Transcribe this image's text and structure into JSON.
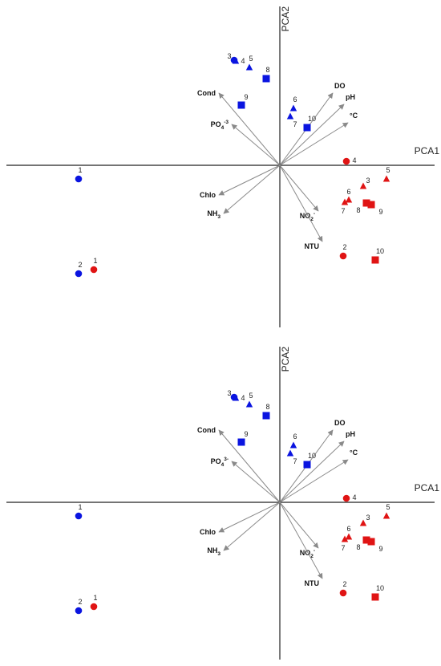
{
  "chart_data": [
    {
      "type": "scatter",
      "title": "",
      "xlabel": "PCA1",
      "ylabel": "PCA2",
      "xlim": [
        -2.62,
        1.52
      ],
      "ylim": [
        -1.51,
        1.53
      ],
      "grid": false,
      "colors": {
        "blue": "#0a14e0",
        "red": "#e01414",
        "loading": "#8a8a8a"
      },
      "loadings": [
        {
          "name": "DO",
          "x": 0.66,
          "y": 0.9,
          "sub": "",
          "sup": ""
        },
        {
          "name": "pH",
          "x": 0.8,
          "y": 0.76,
          "sub": "",
          "sup": ""
        },
        {
          "name": "°C",
          "x": 0.85,
          "y": 0.53,
          "sub": "",
          "sup": ""
        },
        {
          "name": "Cond",
          "x": -0.76,
          "y": 0.9,
          "sub": "",
          "sup": ""
        },
        {
          "name": "PO",
          "x": -0.6,
          "y": 0.51,
          "sub": "4",
          "sup": "-3"
        },
        {
          "name": "Chlo",
          "x": -0.76,
          "y": -0.37,
          "sub": "",
          "sup": ""
        },
        {
          "name": "NH",
          "x": -0.7,
          "y": -0.6,
          "sub": "3",
          "sup": ""
        },
        {
          "name": "NO",
          "x": 0.48,
          "y": -0.57,
          "sub": "2",
          "sup": "-"
        },
        {
          "name": "NTU",
          "x": 0.53,
          "y": -0.95,
          "sub": "",
          "sup": ""
        }
      ],
      "points": [
        {
          "label": "3",
          "x": -0.57,
          "y": 1.31,
          "shape": "circle",
          "color": "blue"
        },
        {
          "label": "4",
          "x": -0.55,
          "y": 1.3,
          "shape": "triangle",
          "color": "blue"
        },
        {
          "label": "5",
          "x": -0.38,
          "y": 1.22,
          "shape": "triangle",
          "color": "blue"
        },
        {
          "label": "8",
          "x": -0.17,
          "y": 1.08,
          "shape": "square",
          "color": "blue"
        },
        {
          "label": "9",
          "x": -0.48,
          "y": 0.75,
          "shape": "square",
          "color": "blue"
        },
        {
          "label": "6",
          "x": 0.17,
          "y": 0.71,
          "shape": "triangle",
          "color": "blue"
        },
        {
          "label": "7",
          "x": 0.13,
          "y": 0.61,
          "shape": "triangle",
          "color": "blue"
        },
        {
          "label": "10",
          "x": 0.34,
          "y": 0.47,
          "shape": "square",
          "color": "blue"
        },
        {
          "label": "1",
          "x": -2.51,
          "y": -0.17,
          "shape": "circle",
          "color": "blue"
        },
        {
          "label": "2",
          "x": -2.51,
          "y": -1.35,
          "shape": "circle",
          "color": "blue"
        },
        {
          "label": "1",
          "x": -2.32,
          "y": -1.3,
          "shape": "circle",
          "color": "red"
        },
        {
          "label": "4",
          "x": 0.83,
          "y": 0.05,
          "shape": "circle",
          "color": "red"
        },
        {
          "label": "5",
          "x": 1.33,
          "y": -0.17,
          "shape": "triangle",
          "color": "red"
        },
        {
          "label": "3",
          "x": 1.04,
          "y": -0.26,
          "shape": "triangle",
          "color": "red"
        },
        {
          "label": "6",
          "x": 0.86,
          "y": -0.43,
          "shape": "triangle",
          "color": "red"
        },
        {
          "label": "7",
          "x": 0.81,
          "y": -0.46,
          "shape": "triangle",
          "color": "red"
        },
        {
          "label": "8",
          "x": 1.08,
          "y": -0.47,
          "shape": "square",
          "color": "red"
        },
        {
          "label": "9",
          "x": 1.14,
          "y": -0.49,
          "shape": "square",
          "color": "red"
        },
        {
          "label": "2",
          "x": 0.79,
          "y": -1.13,
          "shape": "circle",
          "color": "red"
        },
        {
          "label": "10",
          "x": 1.19,
          "y": -1.18,
          "shape": "square",
          "color": "red"
        }
      ]
    },
    {
      "type": "scatter",
      "title": "",
      "xlabel": "PCA1",
      "ylabel": "PCA2",
      "xlim": [
        -2.62,
        1.52
      ],
      "ylim": [
        -1.51,
        1.53
      ],
      "grid": false,
      "colors": {
        "blue": "#0a14e0",
        "red": "#e01414",
        "loading": "#8a8a8a"
      },
      "loadings": [
        {
          "name": "DO",
          "x": 0.66,
          "y": 0.9,
          "sub": "",
          "sup": ""
        },
        {
          "name": "pH",
          "x": 0.8,
          "y": 0.76,
          "sub": "",
          "sup": ""
        },
        {
          "name": "°C",
          "x": 0.85,
          "y": 0.53,
          "sub": "",
          "sup": ""
        },
        {
          "name": "Cond",
          "x": -0.76,
          "y": 0.9,
          "sub": "",
          "sup": ""
        },
        {
          "name": "PO",
          "x": -0.6,
          "y": 0.51,
          "sub": "4",
          "sup": "3-"
        },
        {
          "name": "Chlo",
          "x": -0.76,
          "y": -0.37,
          "sub": "",
          "sup": ""
        },
        {
          "name": "NH",
          "x": -0.7,
          "y": -0.6,
          "sub": "3",
          "sup": ""
        },
        {
          "name": "NO",
          "x": 0.48,
          "y": -0.57,
          "sub": "2",
          "sup": "-"
        },
        {
          "name": "NTU",
          "x": 0.53,
          "y": -0.95,
          "sub": "",
          "sup": ""
        }
      ],
      "points": [
        {
          "label": "3",
          "x": -0.57,
          "y": 1.31,
          "shape": "circle",
          "color": "blue"
        },
        {
          "label": "4",
          "x": -0.55,
          "y": 1.3,
          "shape": "triangle",
          "color": "blue"
        },
        {
          "label": "5",
          "x": -0.38,
          "y": 1.22,
          "shape": "triangle",
          "color": "blue"
        },
        {
          "label": "8",
          "x": -0.17,
          "y": 1.08,
          "shape": "square",
          "color": "blue"
        },
        {
          "label": "9",
          "x": -0.48,
          "y": 0.75,
          "shape": "square",
          "color": "blue"
        },
        {
          "label": "6",
          "x": 0.17,
          "y": 0.71,
          "shape": "triangle",
          "color": "blue"
        },
        {
          "label": "7",
          "x": 0.13,
          "y": 0.61,
          "shape": "triangle",
          "color": "blue"
        },
        {
          "label": "10",
          "x": 0.34,
          "y": 0.47,
          "shape": "square",
          "color": "blue"
        },
        {
          "label": "1",
          "x": -2.51,
          "y": -0.17,
          "shape": "circle",
          "color": "blue"
        },
        {
          "label": "2",
          "x": -2.51,
          "y": -1.35,
          "shape": "circle",
          "color": "blue"
        },
        {
          "label": "1",
          "x": -2.32,
          "y": -1.3,
          "shape": "circle",
          "color": "red"
        },
        {
          "label": "4",
          "x": 0.83,
          "y": 0.05,
          "shape": "circle",
          "color": "red"
        },
        {
          "label": "5",
          "x": 1.33,
          "y": -0.17,
          "shape": "triangle",
          "color": "red"
        },
        {
          "label": "3",
          "x": 1.04,
          "y": -0.26,
          "shape": "triangle",
          "color": "red"
        },
        {
          "label": "6",
          "x": 0.86,
          "y": -0.43,
          "shape": "triangle",
          "color": "red"
        },
        {
          "label": "7",
          "x": 0.81,
          "y": -0.46,
          "shape": "triangle",
          "color": "red"
        },
        {
          "label": "8",
          "x": 1.08,
          "y": -0.47,
          "shape": "square",
          "color": "red"
        },
        {
          "label": "9",
          "x": 1.14,
          "y": -0.49,
          "shape": "square",
          "color": "red"
        },
        {
          "label": "2",
          "x": 0.79,
          "y": -1.13,
          "shape": "circle",
          "color": "red"
        },
        {
          "label": "10",
          "x": 1.19,
          "y": -1.18,
          "shape": "square",
          "color": "red"
        }
      ]
    }
  ]
}
